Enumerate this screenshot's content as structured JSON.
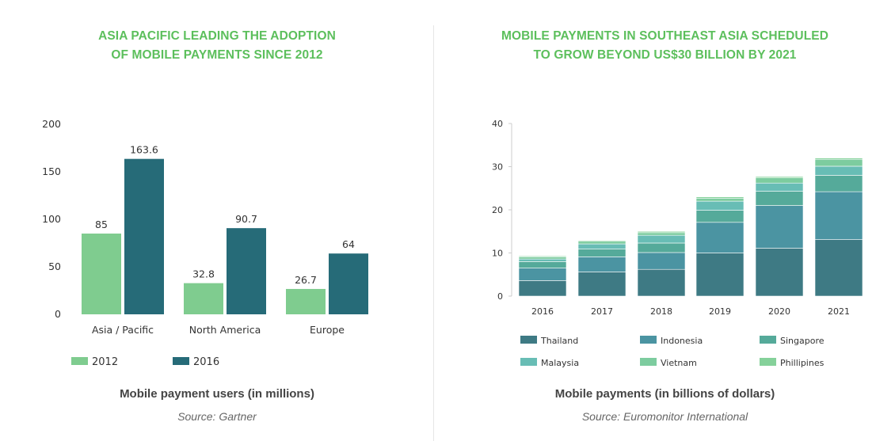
{
  "colors": {
    "title_green": "#5cbf5c",
    "c2012": "#7fcc8f",
    "c2016": "#266b78",
    "thailand": "#3e7a84",
    "indonesia": "#4b94a2",
    "singapore": "#55aa9a",
    "malaysia": "#68bdb5",
    "vietnam": "#7dcc9f",
    "phillipines": "#85d19a"
  },
  "left": {
    "title_line1": "ASIA PACIFIC LEADING THE ADOPTION",
    "title_line2": "OF MOBILE PAYMENTS SINCE 2012",
    "caption": "Mobile payment users (in millions)",
    "source": "Source: Gartner"
  },
  "right": {
    "title_line1": "MOBILE PAYMENTS IN SOUTHEAST ASIA SCHEDULED",
    "title_line2": "TO GROW BEYOND US$30 BILLION BY 2021",
    "caption": "Mobile payments (in billions of dollars)",
    "source": "Source: Euromonitor International"
  },
  "chart_data": [
    {
      "type": "bar",
      "title": "ASIA PACIFIC LEADING THE ADOPTION OF MOBILE PAYMENTS SINCE 2012",
      "categories": [
        "Asia / Pacific",
        "North America",
        "Europe"
      ],
      "series": [
        {
          "name": "2012",
          "values": [
            85,
            32.8,
            26.7
          ],
          "labels": [
            "85",
            "32.8",
            "26.7"
          ],
          "color": "#7fcc8f"
        },
        {
          "name": "2016",
          "values": [
            163.6,
            90.7,
            64
          ],
          "labels": [
            "163.6",
            "90.7",
            "64"
          ],
          "color": "#266b78"
        }
      ],
      "ylim": [
        0,
        200
      ],
      "yticks": [
        0,
        50,
        100,
        150,
        200
      ],
      "grid": false,
      "legend": "bottom-left",
      "xlabel": "Mobile payment users (in millions)",
      "source": "Source: Gartner"
    },
    {
      "type": "bar",
      "stacked": true,
      "title": "MOBILE PAYMENTS IN SOUTHEAST ASIA SCHEDULED TO GROW BEYOND US$30 BILLION BY 2021",
      "categories": [
        "2016",
        "2017",
        "2018",
        "2019",
        "2020",
        "2021"
      ],
      "series": [
        {
          "name": "Thailand",
          "values": [
            3.6,
            5.6,
            6.2,
            10,
            11.1,
            13.1
          ],
          "color": "#3e7a84"
        },
        {
          "name": "Indonesia",
          "values": [
            2.9,
            3.5,
            3.9,
            7.1,
            9.9,
            11.1
          ],
          "color": "#4b94a2"
        },
        {
          "name": "Singapore",
          "values": [
            1.5,
            1.8,
            2.2,
            2.8,
            3.3,
            3.8
          ],
          "color": "#55aa9a"
        },
        {
          "name": "Malaysia",
          "values": [
            0.6,
            1.2,
            1.8,
            2.1,
            1.9,
            2.1
          ],
          "color": "#68bdb5"
        },
        {
          "name": "Vietnam",
          "values": [
            0.5,
            0.6,
            0.6,
            0.7,
            1.2,
            1.6
          ],
          "color": "#7dcc9f"
        },
        {
          "name": "Phillipines",
          "values": [
            0.2,
            0.2,
            0.3,
            0.3,
            0.3,
            0.3
          ],
          "color": "#85d19a"
        }
      ],
      "ylim": [
        0,
        40
      ],
      "yticks": [
        0,
        10,
        20,
        30,
        40
      ],
      "grid": false,
      "legend": "bottom",
      "xlabel": "Mobile payments (in billions of dollars)",
      "source": "Source: Euromonitor International"
    }
  ]
}
